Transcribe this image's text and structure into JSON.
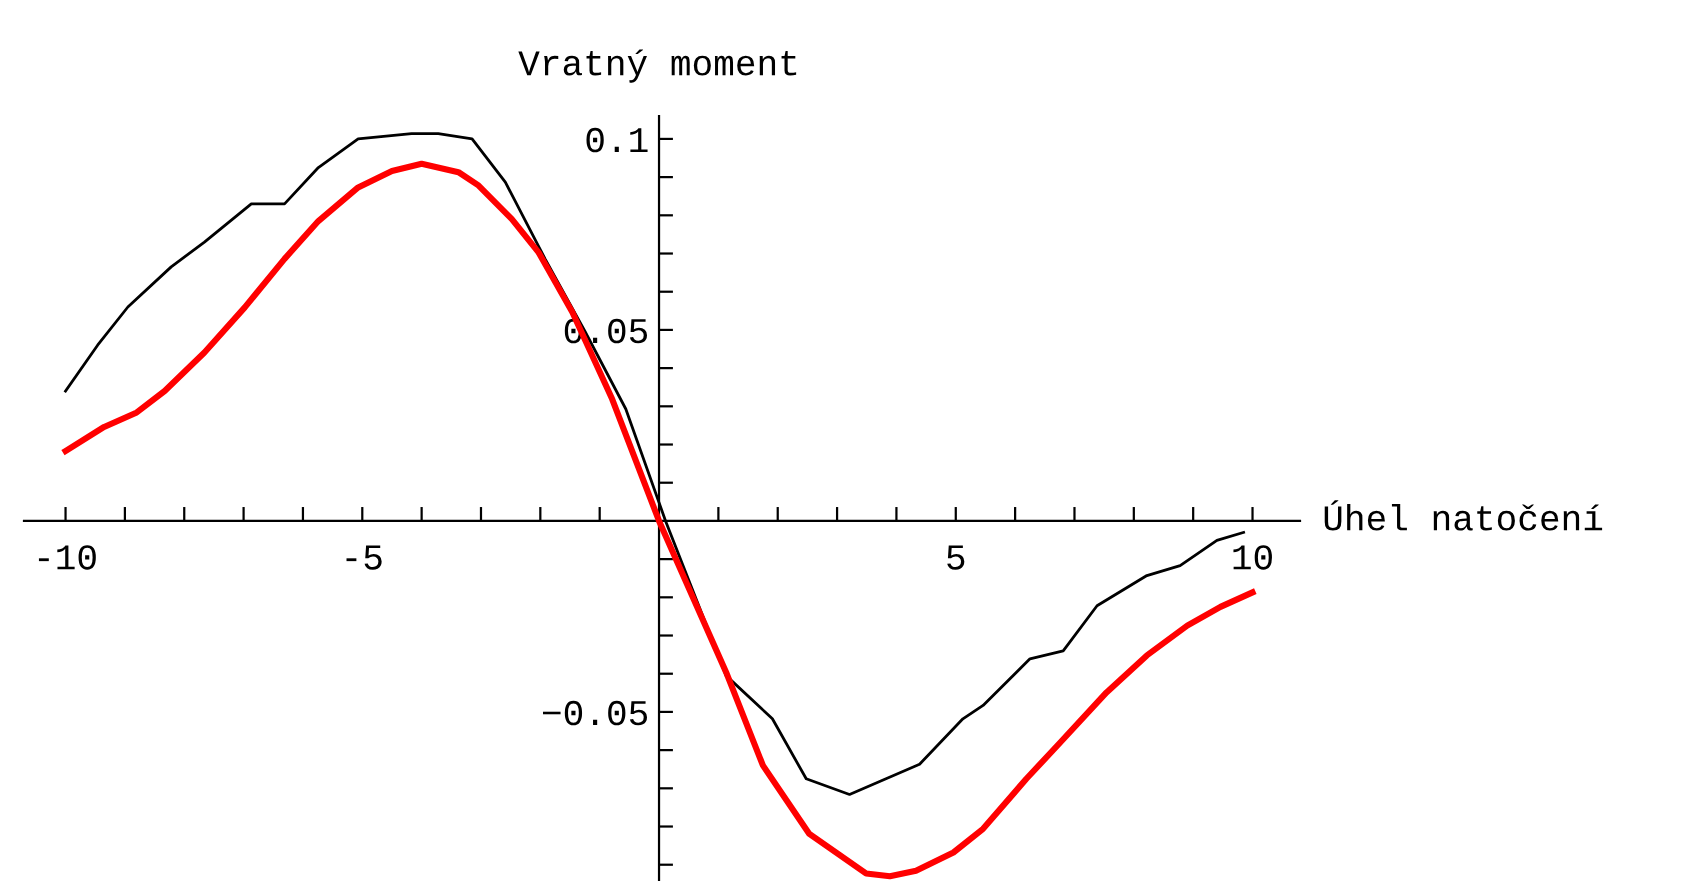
{
  "chart_data": {
    "type": "line",
    "xlabel": "Úhel natočení",
    "ylabel": "Vratný moment",
    "xlim": [
      -10.7,
      10.8
    ],
    "ylim": [
      -0.094,
      0.106
    ],
    "xticks": [
      -10,
      {
        "value": -9,
        "label": null
      },
      {
        "value": -8,
        "label": null
      },
      {
        "value": -7,
        "label": null
      },
      {
        "value": -6,
        "label": null
      },
      -5,
      {
        "value": -4,
        "label": null
      },
      {
        "value": -3,
        "label": null
      },
      {
        "value": -2,
        "label": null
      },
      {
        "value": -1,
        "label": null
      },
      {
        "value": 1,
        "label": null
      },
      {
        "value": 2,
        "label": null
      },
      {
        "value": 3,
        "label": null
      },
      {
        "value": 4,
        "label": null
      },
      5,
      {
        "value": 6,
        "label": null
      },
      {
        "value": 7,
        "label": null
      },
      {
        "value": 8,
        "label": null
      },
      {
        "value": 9,
        "label": null
      },
      10
    ],
    "yticks": [
      {
        "value": -0.09,
        "label": null
      },
      {
        "value": -0.08,
        "label": null
      },
      {
        "value": -0.07,
        "label": null
      },
      {
        "value": -0.06,
        "label": null
      },
      {
        "value": -0.05,
        "label": "−0.05"
      },
      {
        "value": -0.04,
        "label": null
      },
      {
        "value": -0.03,
        "label": null
      },
      {
        "value": -0.02,
        "label": null
      },
      {
        "value": -0.01,
        "label": null
      },
      {
        "value": 0.01,
        "label": null
      },
      {
        "value": 0.02,
        "label": null
      },
      {
        "value": 0.03,
        "label": null
      },
      {
        "value": 0.04,
        "label": null
      },
      0.05,
      {
        "value": 0.06,
        "label": null
      },
      {
        "value": 0.07,
        "label": null
      },
      {
        "value": 0.08,
        "label": null
      },
      {
        "value": 0.09,
        "label": null
      },
      0.1
    ],
    "grid": false,
    "legend": false,
    "series": [
      {
        "color": "#000000",
        "x": [
          -10,
          -9.46,
          -8.95,
          -8.22,
          -7.66,
          -6.87,
          -6.31,
          -5.74,
          -5.07,
          -4.17,
          -3.72,
          -3.15,
          -2.59,
          -1.92,
          -1.24,
          -0.56,
          0.11,
          1.13,
          1.91,
          2.48,
          3.21,
          4.39,
          5.12,
          5.46,
          6.25,
          6.81,
          7.38,
          8.22,
          8.78,
          9.4,
          9.85
        ],
        "values": [
          0.034,
          0.046,
          0.056,
          0.0665,
          0.073,
          0.083,
          0.083,
          0.0925,
          0.1,
          0.1014,
          0.1014,
          0.1,
          0.0887,
          0.0686,
          0.0494,
          0.0293,
          0,
          -0.0405,
          -0.0518,
          -0.0675,
          -0.0716,
          -0.0637,
          -0.0518,
          -0.0483,
          -0.0361,
          -0.034,
          -0.0222,
          -0.0143,
          -0.0117,
          -0.0051,
          -0.003
        ]
      },
      {
        "color": "#ff0000",
        "x": [
          -10,
          -9.35,
          -8.8,
          -8.33,
          -7.66,
          -6.98,
          -6.31,
          -5.74,
          -5.07,
          -4.5,
          -4.0,
          -3.38,
          -3.04,
          -2.48,
          -2.03,
          -1.46,
          -0.79,
          0,
          1.13,
          1.75,
          2.53,
          3.49,
          3.89,
          4.33,
          4.96,
          5.46,
          6.19,
          6.76,
          7.54,
          8.22,
          8.9,
          9.46,
          10
        ],
        "values": [
          0.0183,
          0.0246,
          0.0284,
          0.034,
          0.0441,
          0.0559,
          0.0686,
          0.0785,
          0.0873,
          0.0916,
          0.0935,
          0.0913,
          0.0878,
          0.079,
          0.0703,
          0.0546,
          0.0319,
          0,
          -0.0396,
          -0.064,
          -0.0819,
          -0.0923,
          -0.093,
          -0.0916,
          -0.0868,
          -0.0806,
          -0.0675,
          -0.058,
          -0.0449,
          -0.0352,
          -0.0274,
          -0.0225,
          -0.0187
        ]
      }
    ]
  }
}
